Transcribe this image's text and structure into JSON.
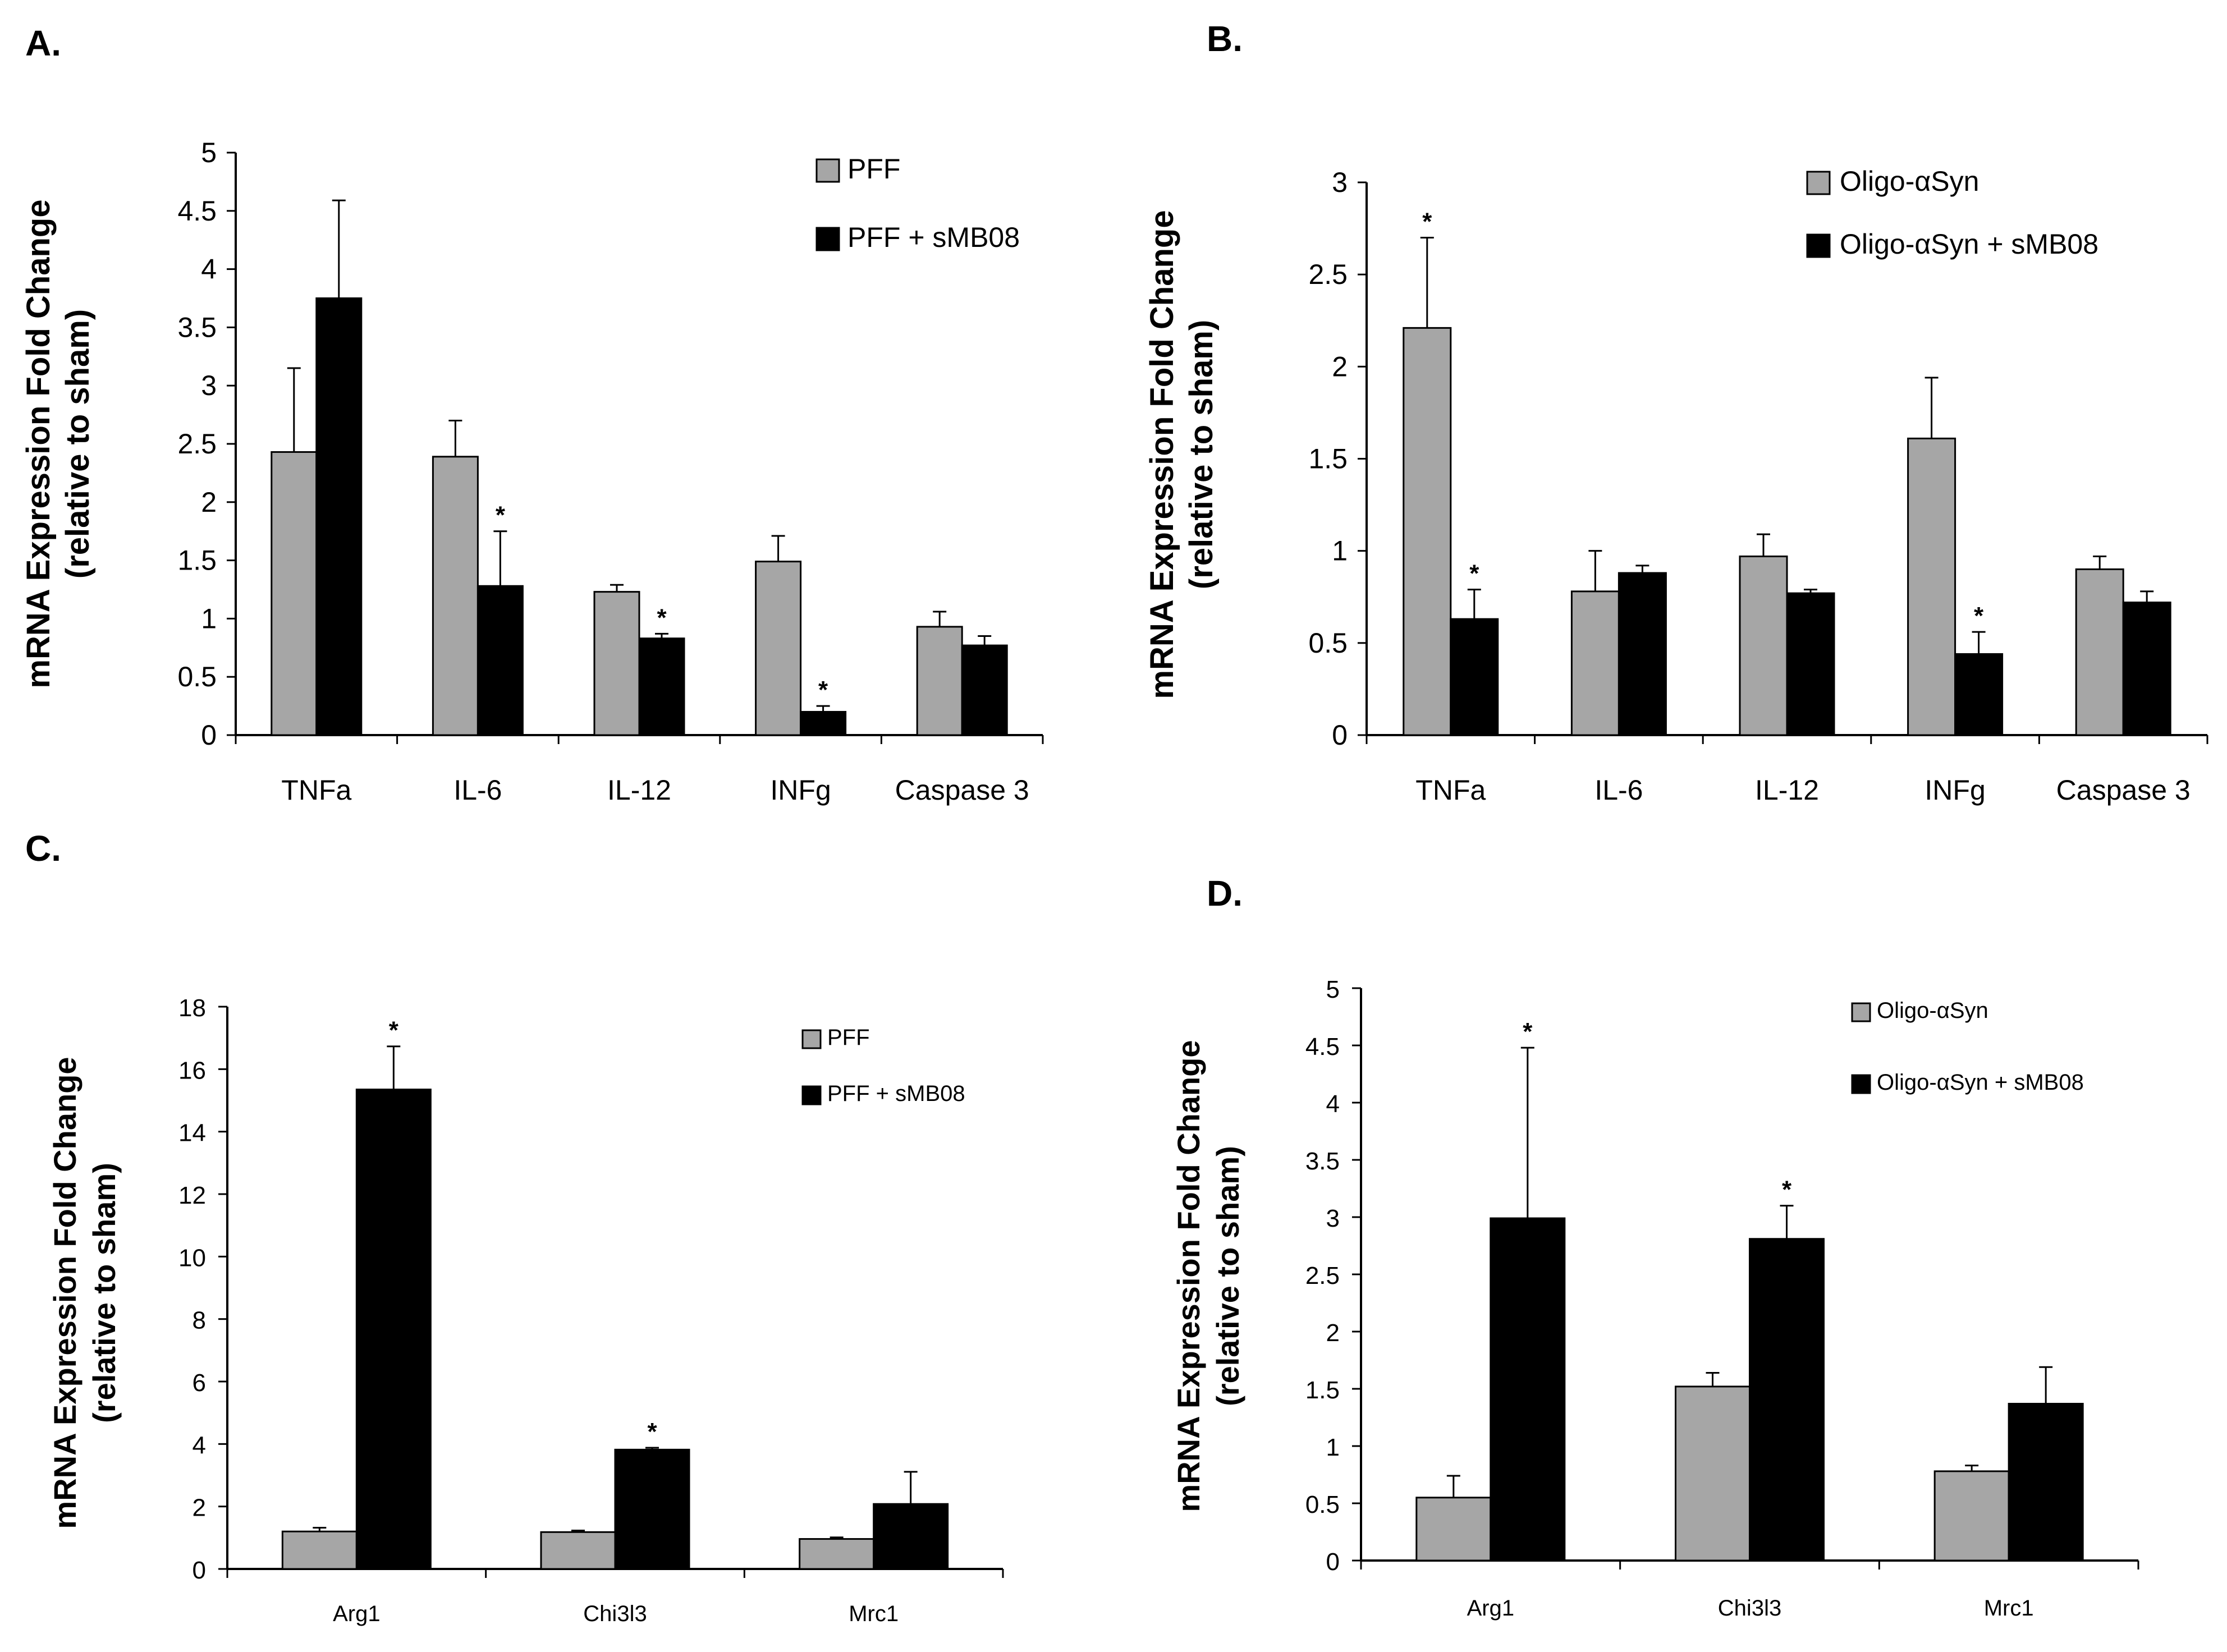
{
  "colors": {
    "series_gray": "#a6a6a6",
    "series_black": "#000000",
    "axis": "#000000"
  },
  "chart_data": [
    {
      "panel": "A.",
      "type": "bar",
      "categories": [
        "TNFa",
        "IL-6",
        "IL-12",
        "INFg",
        "Caspase 3"
      ],
      "ylabel_lines": [
        "mRNA Expression Fold Change",
        "(relative to sham)"
      ],
      "ylim": [
        0,
        5
      ],
      "yticks": [
        "0",
        "0.5",
        "1",
        "1.5",
        "2",
        "2.5",
        "3",
        "3.5",
        "4",
        "4.5",
        "5"
      ],
      "legend_position": "top-right",
      "series": [
        {
          "name": "PFF",
          "values": [
            2.43,
            2.39,
            1.23,
            1.49,
            0.93
          ],
          "errors": [
            0.72,
            0.31,
            0.06,
            0.22,
            0.13
          ],
          "stars": [
            "",
            "",
            "",
            "",
            ""
          ]
        },
        {
          "name": "PFF + sMB08",
          "values": [
            3.75,
            1.28,
            0.83,
            0.2,
            0.77
          ],
          "errors": [
            0.84,
            0.47,
            0.04,
            0.05,
            0.08
          ],
          "stars": [
            "",
            "*",
            "*",
            "*",
            ""
          ]
        }
      ]
    },
    {
      "panel": "B.",
      "type": "bar",
      "categories": [
        "TNFa",
        "IL-6",
        "IL-12",
        "INFg",
        "Caspase 3"
      ],
      "ylabel_lines": [
        "mRNA Expression Fold Change",
        "(relative to sham)"
      ],
      "ylim": [
        0,
        3
      ],
      "yticks": [
        "0",
        "0.5",
        "1",
        "1.5",
        "2",
        "2.5",
        "3"
      ],
      "legend_position": "top-right",
      "series": [
        {
          "name": "Oligo-αSyn",
          "values": [
            2.21,
            0.78,
            0.97,
            1.61,
            0.9
          ],
          "errors": [
            0.49,
            0.22,
            0.12,
            0.33,
            0.07
          ],
          "stars": [
            "*",
            "",
            "",
            "",
            ""
          ]
        },
        {
          "name": "Oligo-αSyn + sMB08",
          "values": [
            0.63,
            0.88,
            0.77,
            0.44,
            0.72
          ],
          "errors": [
            0.16,
            0.04,
            0.02,
            0.12,
            0.06
          ],
          "stars": [
            "*",
            "",
            "",
            "*",
            ""
          ]
        }
      ]
    },
    {
      "panel": "C.",
      "type": "bar",
      "categories": [
        "Arg1",
        "Chi3l3",
        "Mrc1"
      ],
      "ylabel_lines": [
        "mRNA Expression Fold Change",
        "(relative to sham)"
      ],
      "ylim": [
        0,
        18
      ],
      "yticks": [
        "0",
        "2",
        "4",
        "6",
        "8",
        "10",
        "12",
        "14",
        "16",
        "18"
      ],
      "legend_position": "top-right",
      "series": [
        {
          "name": "PFF",
          "values": [
            1.2,
            1.18,
            0.96
          ],
          "errors": [
            0.12,
            0.05,
            0.05
          ],
          "stars": [
            "",
            "",
            ""
          ]
        },
        {
          "name": "PFF + sMB08",
          "values": [
            15.35,
            3.82,
            2.08
          ],
          "errors": [
            1.38,
            0.06,
            1.03
          ],
          "stars": [
            "*",
            "*",
            ""
          ]
        }
      ]
    },
    {
      "panel": "D.",
      "type": "bar",
      "categories": [
        "Arg1",
        "Chi3l3",
        "Mrc1"
      ],
      "ylabel_lines": [
        "mRNA Expression Fold Change",
        "(relative to sham)"
      ],
      "ylim": [
        0,
        5
      ],
      "yticks": [
        "0",
        "0.5",
        "1",
        "1.5",
        "2",
        "2.5",
        "3",
        "3.5",
        "4",
        "4.5",
        "5"
      ],
      "legend_position": "top-right",
      "series": [
        {
          "name": "Oligo-αSyn",
          "values": [
            0.55,
            1.52,
            0.78
          ],
          "errors": [
            0.19,
            0.12,
            0.05
          ],
          "stars": [
            "",
            "",
            ""
          ]
        },
        {
          "name": "Oligo-αSyn + sMB08",
          "values": [
            2.99,
            2.81,
            1.37
          ],
          "errors": [
            1.49,
            0.29,
            0.32
          ],
          "stars": [
            "*",
            "*",
            ""
          ]
        }
      ]
    }
  ]
}
